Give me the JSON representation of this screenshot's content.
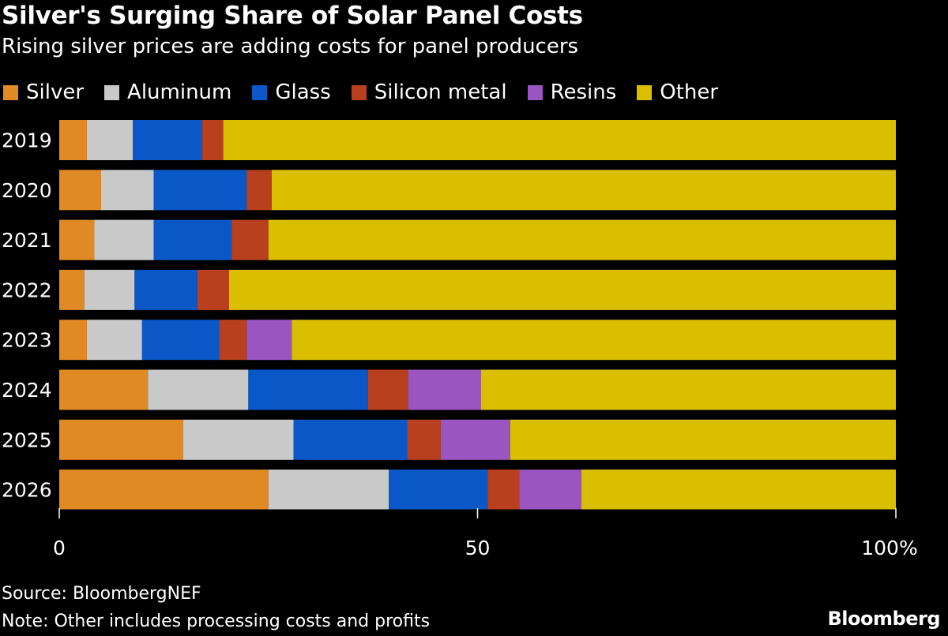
{
  "chart_data": {
    "type": "bar",
    "orientation": "horizontal",
    "stacked": true,
    "title": "Silver's Surging Share of Solar Panel Costs",
    "subtitle": "Rising silver prices are adding costs for panel producers",
    "categories": [
      "2019",
      "2020",
      "2021",
      "2022",
      "2023",
      "2024",
      "2025",
      "2026"
    ],
    "series": [
      {
        "name": "Silver",
        "color": "#e08a26",
        "values": [
          3.3,
          5.0,
          4.2,
          3.0,
          3.3,
          10.6,
          14.8,
          25.0
        ]
      },
      {
        "name": "Aluminum",
        "color": "#c9c9c9",
        "values": [
          5.5,
          6.3,
          7.1,
          6.0,
          6.6,
          12.0,
          13.2,
          14.4
        ]
      },
      {
        "name": "Glass",
        "color": "#0a58c8",
        "values": [
          8.3,
          11.1,
          9.3,
          7.5,
          9.2,
          14.3,
          13.6,
          11.8
        ]
      },
      {
        "name": "Silicon metal",
        "color": "#b8401e",
        "values": [
          2.5,
          3.0,
          4.4,
          3.8,
          3.3,
          4.8,
          4.0,
          3.8
        ]
      },
      {
        "name": "Resins",
        "color": "#9a55c0",
        "values": [
          0,
          0,
          0,
          0,
          5.4,
          8.7,
          8.3,
          7.4
        ]
      },
      {
        "name": "Other",
        "color": "#d9bf00",
        "values": [
          80.4,
          74.6,
          75.0,
          79.7,
          72.2,
          49.6,
          46.1,
          37.6
        ]
      }
    ],
    "xlim": [
      0,
      100
    ],
    "xticks": [
      {
        "value": 0,
        "label": "0"
      },
      {
        "value": 50,
        "label": "50"
      },
      {
        "value": 100,
        "label": "100%"
      }
    ],
    "legend_position": "top",
    "grid": false
  },
  "footer": {
    "source": "Source: BloombergNEF",
    "note": "Note: Other includes processing costs and profits",
    "brand": "Bloomberg"
  }
}
